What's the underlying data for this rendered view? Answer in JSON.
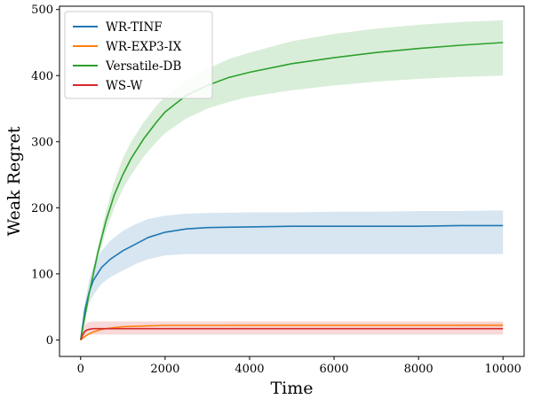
{
  "chart_data": {
    "type": "line",
    "title": "",
    "xlabel": "Time",
    "ylabel": "Weak Regret",
    "xlim": [
      -500,
      10500
    ],
    "ylim": [
      -25,
      505
    ],
    "xticks": [
      0,
      2000,
      4000,
      6000,
      8000,
      10000
    ],
    "yticks": [
      0,
      100,
      200,
      300,
      400,
      500
    ],
    "grid": false,
    "legend_position": "top-left",
    "series": [
      {
        "name": "WR-TINF",
        "color": "#1f77b4",
        "x": [
          0,
          100,
          200,
          300,
          500,
          700,
          1000,
          1300,
          1600,
          2000,
          2500,
          3000,
          4000,
          5000,
          6000,
          7000,
          8000,
          9000,
          10000
        ],
        "mean": [
          0,
          45,
          72,
          90,
          110,
          122,
          135,
          145,
          155,
          163,
          168,
          170,
          171,
          172,
          172,
          172,
          172,
          173,
          173
        ],
        "upper": [
          0,
          55,
          90,
          112,
          135,
          150,
          165,
          175,
          183,
          188,
          191,
          192,
          193,
          193,
          194,
          194,
          195,
          195,
          196
        ],
        "lower": [
          0,
          35,
          55,
          68,
          85,
          95,
          105,
          115,
          122,
          128,
          130,
          130,
          130,
          130,
          130,
          130,
          130,
          130,
          130
        ]
      },
      {
        "name": "WR-EXP3-IX",
        "color": "#ff7f0e",
        "x": [
          0,
          100,
          200,
          300,
          500,
          700,
          1000,
          1500,
          2000,
          3000,
          4000,
          6000,
          8000,
          10000
        ],
        "mean": [
          0,
          5,
          9,
          12,
          16,
          18,
          20,
          21,
          22,
          22,
          22,
          22,
          22,
          22
        ],
        "upper": [
          0,
          6,
          10,
          13,
          17,
          19,
          21,
          22,
          23,
          23,
          24,
          24,
          24,
          25
        ],
        "lower": [
          0,
          4,
          8,
          11,
          15,
          17,
          19,
          20,
          21,
          21,
          21,
          21,
          21,
          21
        ]
      },
      {
        "name": "Versatile-DB",
        "color": "#2ca02c",
        "x": [
          0,
          200,
          400,
          600,
          800,
          1000,
          1200,
          1500,
          1800,
          2000,
          2500,
          3000,
          3500,
          4000,
          5000,
          6000,
          7000,
          8000,
          9000,
          10000
        ],
        "mean": [
          0,
          70,
          130,
          180,
          220,
          250,
          275,
          305,
          330,
          345,
          370,
          385,
          397,
          405,
          418,
          427,
          435,
          441,
          446,
          450
        ],
        "upper": [
          0,
          75,
          140,
          195,
          240,
          275,
          300,
          330,
          355,
          368,
          393,
          410,
          425,
          435,
          452,
          463,
          471,
          477,
          481,
          484
        ],
        "lower": [
          0,
          65,
          120,
          165,
          200,
          228,
          250,
          278,
          300,
          313,
          335,
          350,
          360,
          368,
          378,
          385,
          391,
          395,
          398,
          400
        ]
      },
      {
        "name": "WS-W",
        "color": "#d62728",
        "x": [
          0,
          50,
          100,
          150,
          200,
          300,
          500,
          1000,
          2000,
          4000,
          6000,
          8000,
          10000
        ],
        "mean": [
          0,
          8,
          13,
          15,
          16,
          17,
          17,
          17,
          17,
          17,
          17,
          17,
          17
        ],
        "upper": [
          0,
          14,
          22,
          26,
          27,
          28,
          28,
          28,
          28,
          28,
          28,
          28,
          28
        ],
        "lower": [
          0,
          3,
          6,
          7,
          8,
          8,
          8,
          8,
          8,
          8,
          8,
          8,
          8
        ]
      }
    ]
  }
}
